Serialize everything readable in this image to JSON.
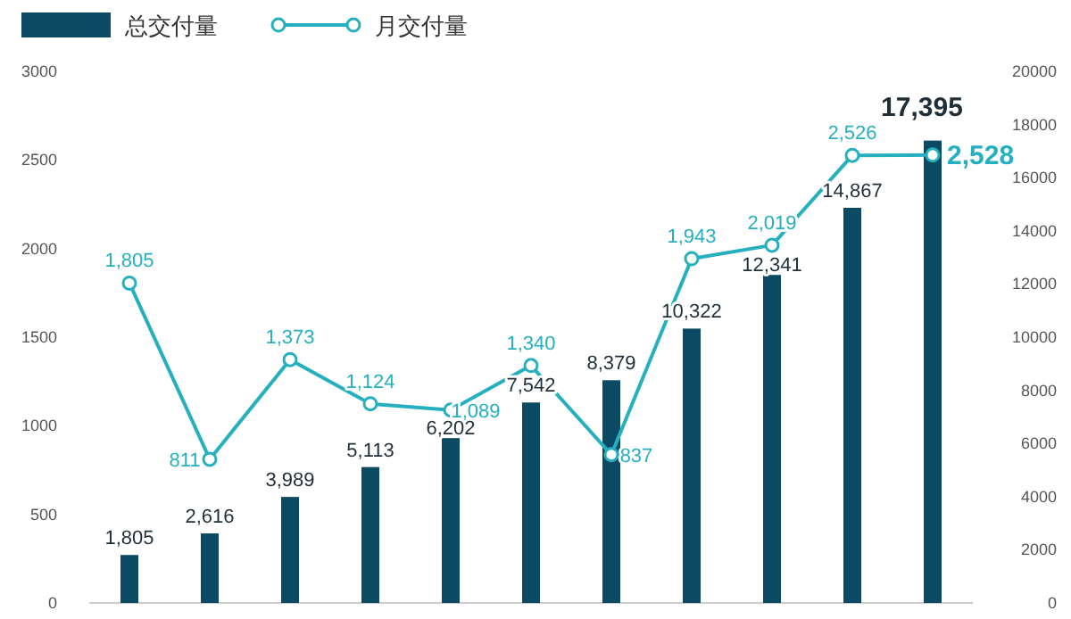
{
  "chart_data": {
    "type": "bar",
    "categories": [
      null,
      null,
      null,
      null,
      null,
      null,
      null,
      null,
      null,
      null,
      null
    ],
    "series": [
      {
        "name": "总交付量",
        "axis": "y2",
        "color": "#0c4a63",
        "values": [
          1805,
          2616,
          3989,
          5113,
          6202,
          7542,
          8379,
          10322,
          12341,
          14867,
          17395
        ],
        "value_labels": [
          "1,805",
          "2,616",
          "3,989",
          "5,113",
          "6,202",
          "7,542",
          "8,379",
          "10,322",
          "12,341",
          "14,867",
          "17,395"
        ]
      },
      {
        "name": "月交付量",
        "type": "line",
        "color": "#26b0bf",
        "marker": "circle",
        "values": [
          1805,
          811,
          1373,
          1124,
          1089,
          1340,
          837,
          1943,
          2019,
          2526,
          2528
        ],
        "value_labels": [
          "1,805",
          "811",
          "1,373",
          "1,124",
          "1,089",
          "1,340",
          "837",
          "1,943",
          "2,019",
          "2,526",
          "2,528"
        ]
      }
    ],
    "ylim": [
      0,
      3000
    ],
    "yticks": [
      0,
      500,
      1000,
      1500,
      2000,
      2500,
      3000
    ],
    "y2lim": [
      0,
      20000
    ],
    "y2ticks": [
      0,
      2000,
      4000,
      6000,
      8000,
      10000,
      12000,
      14000,
      16000,
      18000,
      20000
    ],
    "grid": false,
    "legend": "top left"
  }
}
